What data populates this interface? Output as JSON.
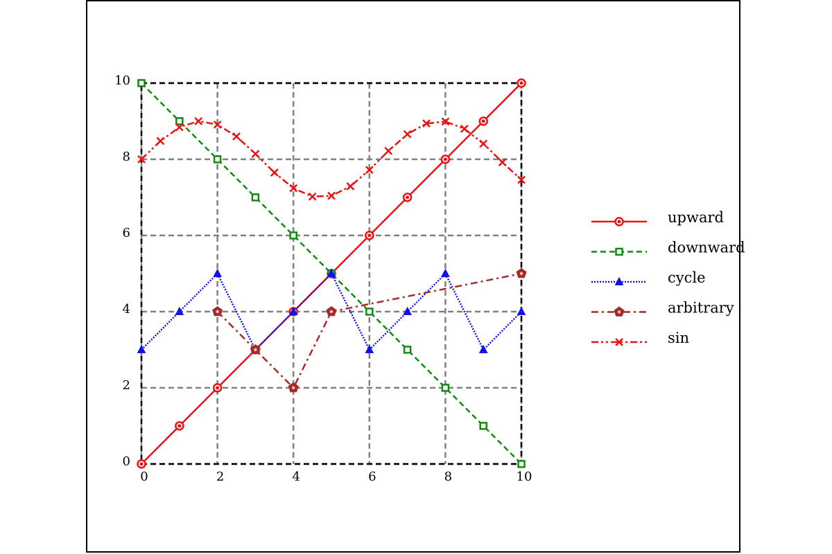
{
  "chart_data": {
    "type": "line",
    "title": "",
    "xlabel": "",
    "ylabel": "",
    "xlim": [
      0,
      10
    ],
    "ylim": [
      0,
      10
    ],
    "xticks": [
      "0",
      "2",
      "4",
      "6",
      "8",
      "10"
    ],
    "yticks": [
      "0",
      "2",
      "4",
      "6",
      "8",
      "10"
    ],
    "grid": true,
    "legend_position": "right",
    "series": [
      {
        "name": "upward",
        "color": "#ee1111",
        "linestyle": "solid",
        "marker": "circle",
        "x": [
          0,
          1,
          2,
          3,
          4,
          5,
          6,
          7,
          8,
          9,
          10
        ],
        "y": [
          0,
          1,
          2,
          3,
          4,
          5,
          6,
          7,
          8,
          9,
          10
        ]
      },
      {
        "name": "downward",
        "color": "#118811",
        "linestyle": "dashed",
        "marker": "square",
        "x": [
          0,
          1,
          2,
          3,
          4,
          5,
          6,
          7,
          8,
          9,
          10
        ],
        "y": [
          10,
          9,
          8,
          7,
          6,
          5,
          4,
          3,
          2,
          1,
          0
        ]
      },
      {
        "name": "cycle",
        "color": "#1111ee",
        "linestyle": "dotted",
        "marker": "triangle",
        "x": [
          0,
          1,
          2,
          3,
          4,
          5,
          6,
          7,
          8,
          9,
          10
        ],
        "y": [
          3,
          4,
          5,
          3,
          4,
          5,
          3,
          4,
          5,
          3,
          4
        ]
      },
      {
        "name": "arbitrary",
        "color": "#a52a2a",
        "linestyle": "dashdot",
        "marker": "pentagon",
        "x": [
          2,
          3,
          4,
          5,
          10
        ],
        "y": [
          4,
          3,
          2,
          4,
          5
        ]
      },
      {
        "name": "sin",
        "color": "#ee1111",
        "linestyle": "dashdotdot",
        "marker": "x",
        "x": [
          0,
          0.5,
          1,
          1.5,
          2,
          2.5,
          3,
          3.5,
          4,
          4.5,
          5,
          5.5,
          6,
          6.5,
          7,
          7.5,
          8,
          8.5,
          9,
          9.5,
          10
        ],
        "y": [
          8.0,
          8.48,
          8.84,
          9.0,
          8.91,
          8.6,
          8.14,
          7.65,
          7.24,
          7.02,
          7.04,
          7.29,
          7.72,
          8.22,
          8.66,
          8.94,
          8.99,
          8.8,
          8.41,
          7.92,
          7.46
        ]
      }
    ]
  }
}
